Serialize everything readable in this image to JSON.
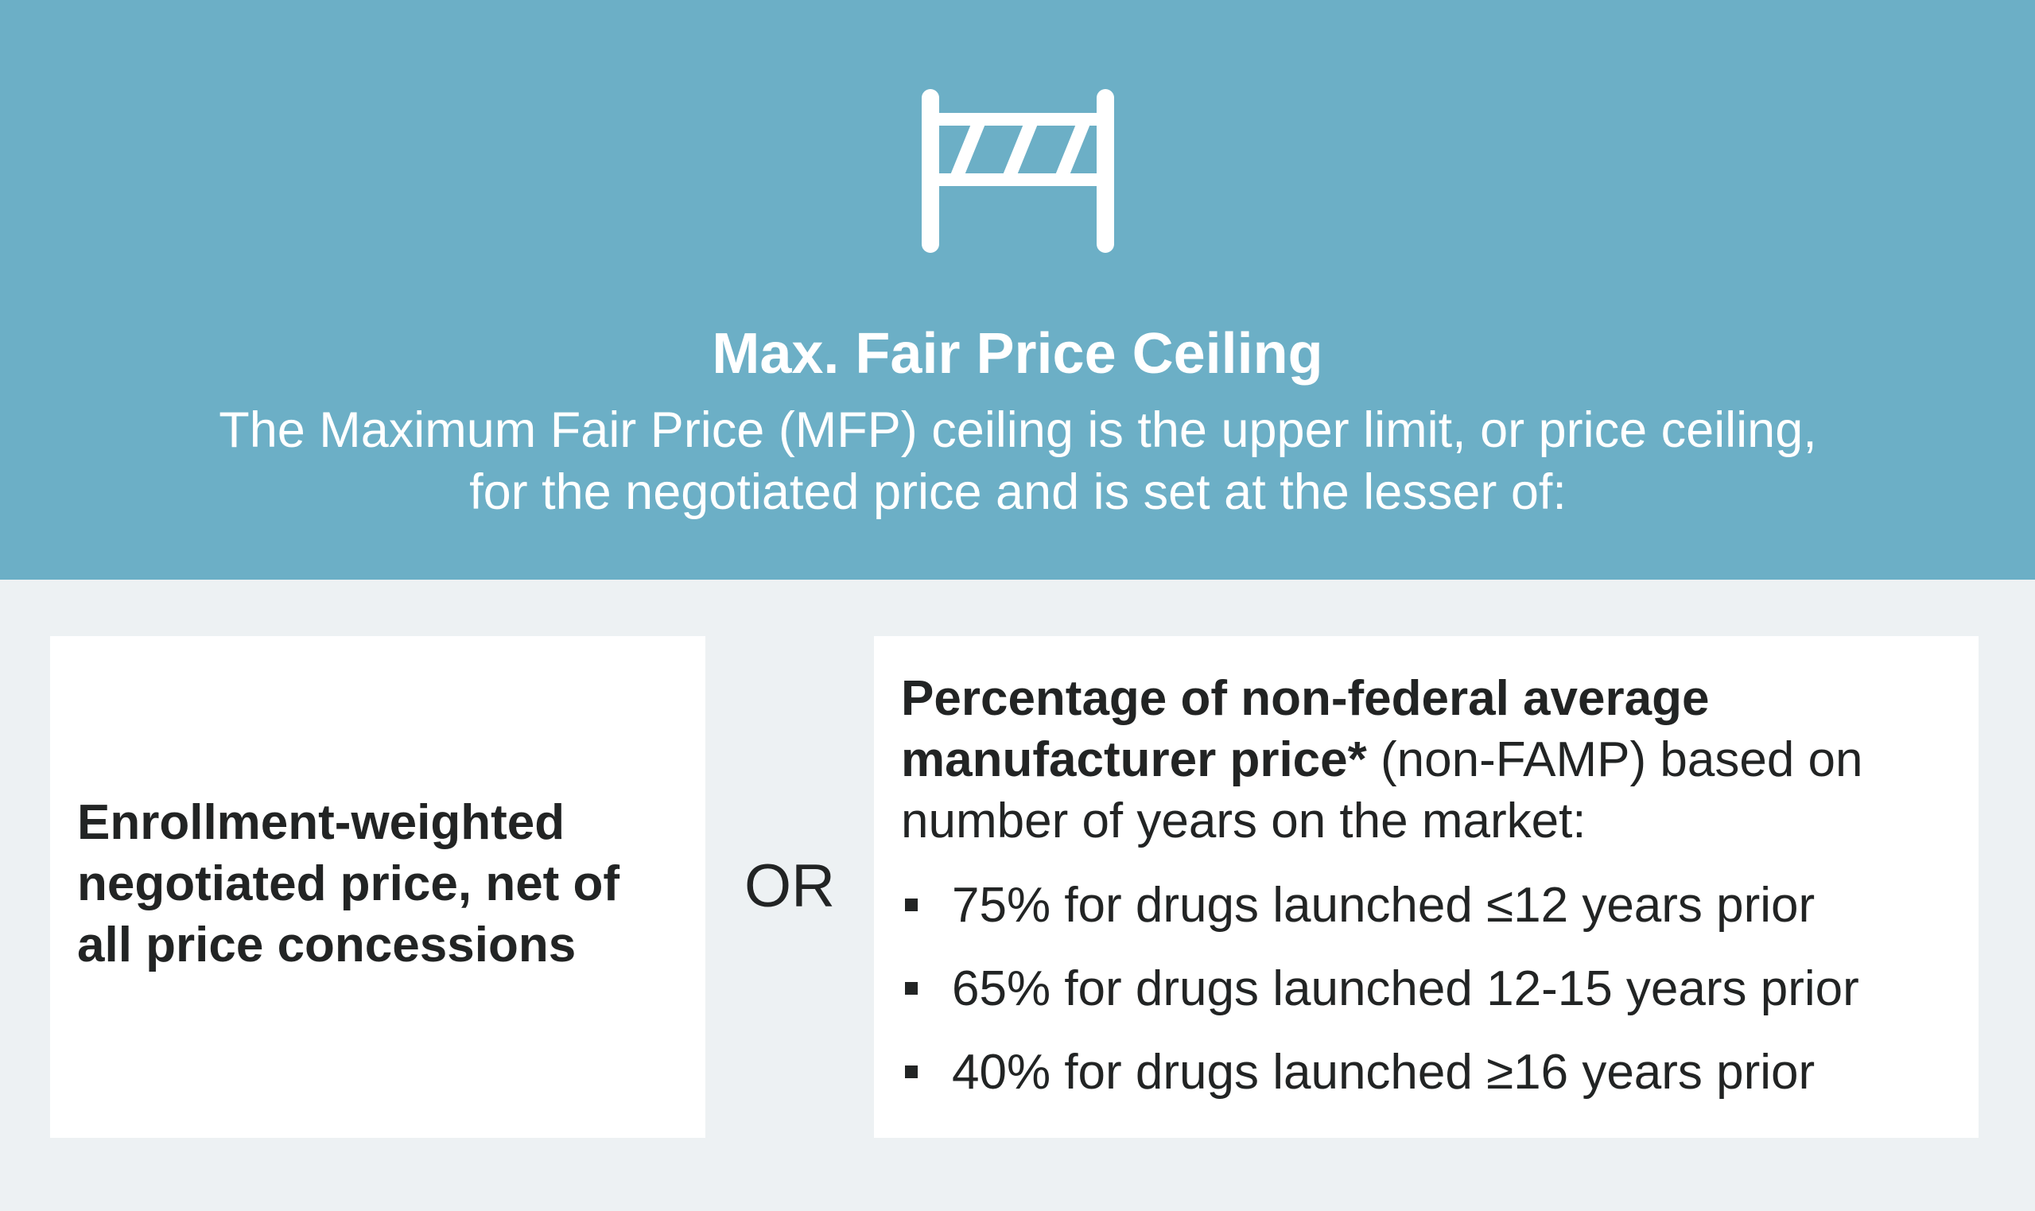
{
  "header": {
    "icon": "road-barrier-icon",
    "title": "Max. Fair Price Ceiling",
    "subtitle_lines": [
      "The Maximum Fair Price (MFP) ceiling is the upper limit, or price ceiling,",
      "for the negotiated price and is set at the lesser of:"
    ]
  },
  "left_card": {
    "lines": [
      "Enrollment-weighted",
      "negotiated price, net of",
      "all price concessions"
    ]
  },
  "separator": "OR",
  "right_card": {
    "intro_bold_1": "Percentage of non-federal average",
    "intro_bold_2": "manufacturer price*",
    "intro_rest_2": " (non-FAMP) based on",
    "intro_line_3": "number of years on the market:",
    "bullets": [
      "75% for drugs launched ≤12 years prior",
      "65% for drugs launched 12-15 years prior",
      "40% for drugs launched ≥16 years prior"
    ]
  },
  "colors": {
    "header_bg": "#6cafc6",
    "page_bg": "#edf1f3",
    "card_bg": "#ffffff",
    "text": "#222424"
  }
}
